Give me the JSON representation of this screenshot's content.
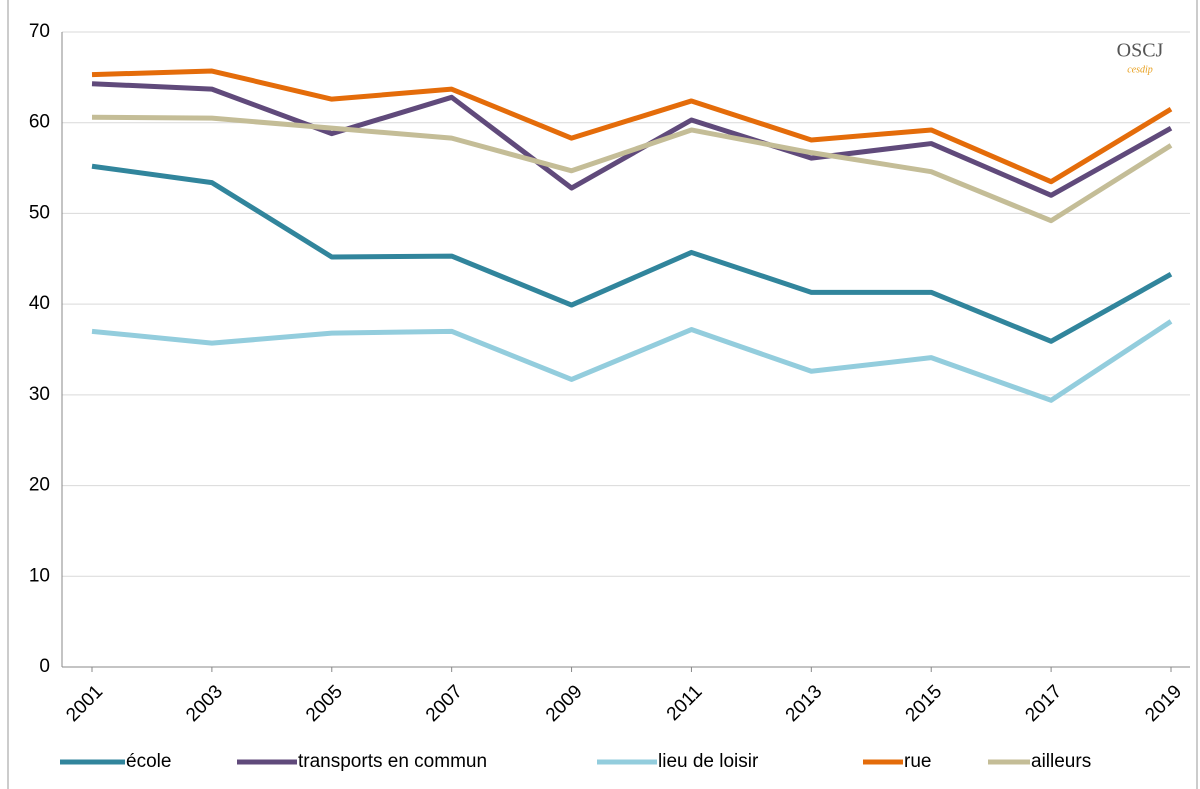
{
  "chart_data": {
    "type": "line",
    "logo": "OSCJ",
    "logo_sub": "cesdip",
    "categories": [
      "2001",
      "2003",
      "2005",
      "2007",
      "2009",
      "2011",
      "2013",
      "2015",
      "2017",
      "2019"
    ],
    "series": [
      {
        "name": "école",
        "color": "#31859c",
        "values": [
          55.2,
          53.4,
          45.2,
          45.3,
          39.9,
          45.7,
          41.3,
          41.3,
          35.9,
          43.3
        ]
      },
      {
        "name": "transports en commun",
        "color": "#604a7b",
        "values": [
          64.3,
          63.7,
          58.8,
          62.8,
          52.8,
          60.3,
          56.1,
          57.7,
          52.0,
          59.4
        ]
      },
      {
        "name": "lieu de loisir",
        "color": "#93cddd",
        "values": [
          37.0,
          35.7,
          36.8,
          37.0,
          31.7,
          37.2,
          32.6,
          34.1,
          29.4,
          38.1
        ]
      },
      {
        "name": "rue",
        "color": "#e46c0a",
        "values": [
          65.3,
          65.7,
          62.6,
          63.7,
          58.3,
          62.4,
          58.1,
          59.2,
          53.5,
          61.5
        ]
      },
      {
        "name": "ailleurs",
        "color": "#c4bd97",
        "values": [
          60.6,
          60.5,
          59.4,
          58.3,
          54.7,
          59.2,
          56.7,
          54.6,
          49.2,
          57.5
        ]
      }
    ],
    "ylim": [
      0,
      70
    ],
    "yticks": [
      0,
      10,
      20,
      30,
      40,
      50,
      60,
      70
    ],
    "grid": true,
    "legend": "bottom"
  }
}
